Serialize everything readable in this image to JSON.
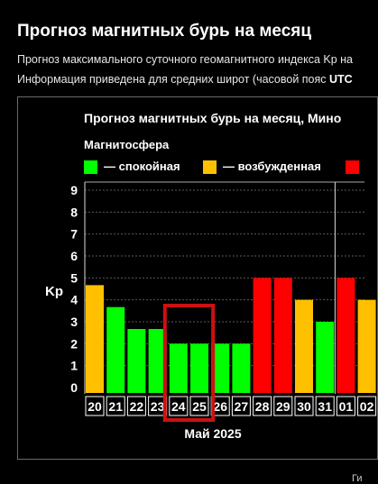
{
  "page": {
    "title": "Прогноз магнитных бурь на месяц",
    "description_line1": "Прогноз максимального суточного геомагнитного индекса Kp на",
    "description_line2_prefix": "Информация приведена для средних широт (часовой пояс ",
    "description_line2_bold": "UTC",
    "footer_fragment": "Ги"
  },
  "colors": {
    "calm": "#00ff00",
    "excited": "#ffc000",
    "storm": "#ff0000",
    "highlight": "#cc1111",
    "background": "#000000"
  },
  "chart_data": {
    "type": "bar",
    "title": "Прогноз магнитных бурь на месяц, Мино",
    "legend_title": "Магнитосфера",
    "legend": [
      {
        "key": "calm",
        "label": "— спокойная"
      },
      {
        "key": "excited",
        "label": "— возбужденная"
      },
      {
        "key": "storm",
        "label": ""
      }
    ],
    "xlabel": "Май 2025",
    "ylabel": "Kp",
    "ylim": [
      0,
      9
    ],
    "yticks": [
      "0",
      "1",
      "2",
      "3",
      "4",
      "5",
      "6",
      "7",
      "8",
      "9"
    ],
    "grid": true,
    "categories": [
      "20",
      "21",
      "22",
      "23",
      "24",
      "25",
      "26",
      "27",
      "28",
      "29",
      "30",
      "31",
      "01",
      "02"
    ],
    "values": [
      4.67,
      3.67,
      2.67,
      2.67,
      2,
      2,
      2,
      2,
      5,
      5,
      4,
      3,
      5,
      4
    ],
    "levels": [
      "excited",
      "calm",
      "calm",
      "calm",
      "calm",
      "calm",
      "calm",
      "calm",
      "storm",
      "storm",
      "excited",
      "calm",
      "storm",
      "excited"
    ],
    "highlighted_days": [
      "24",
      "25"
    ],
    "month_divider_before": "01"
  }
}
